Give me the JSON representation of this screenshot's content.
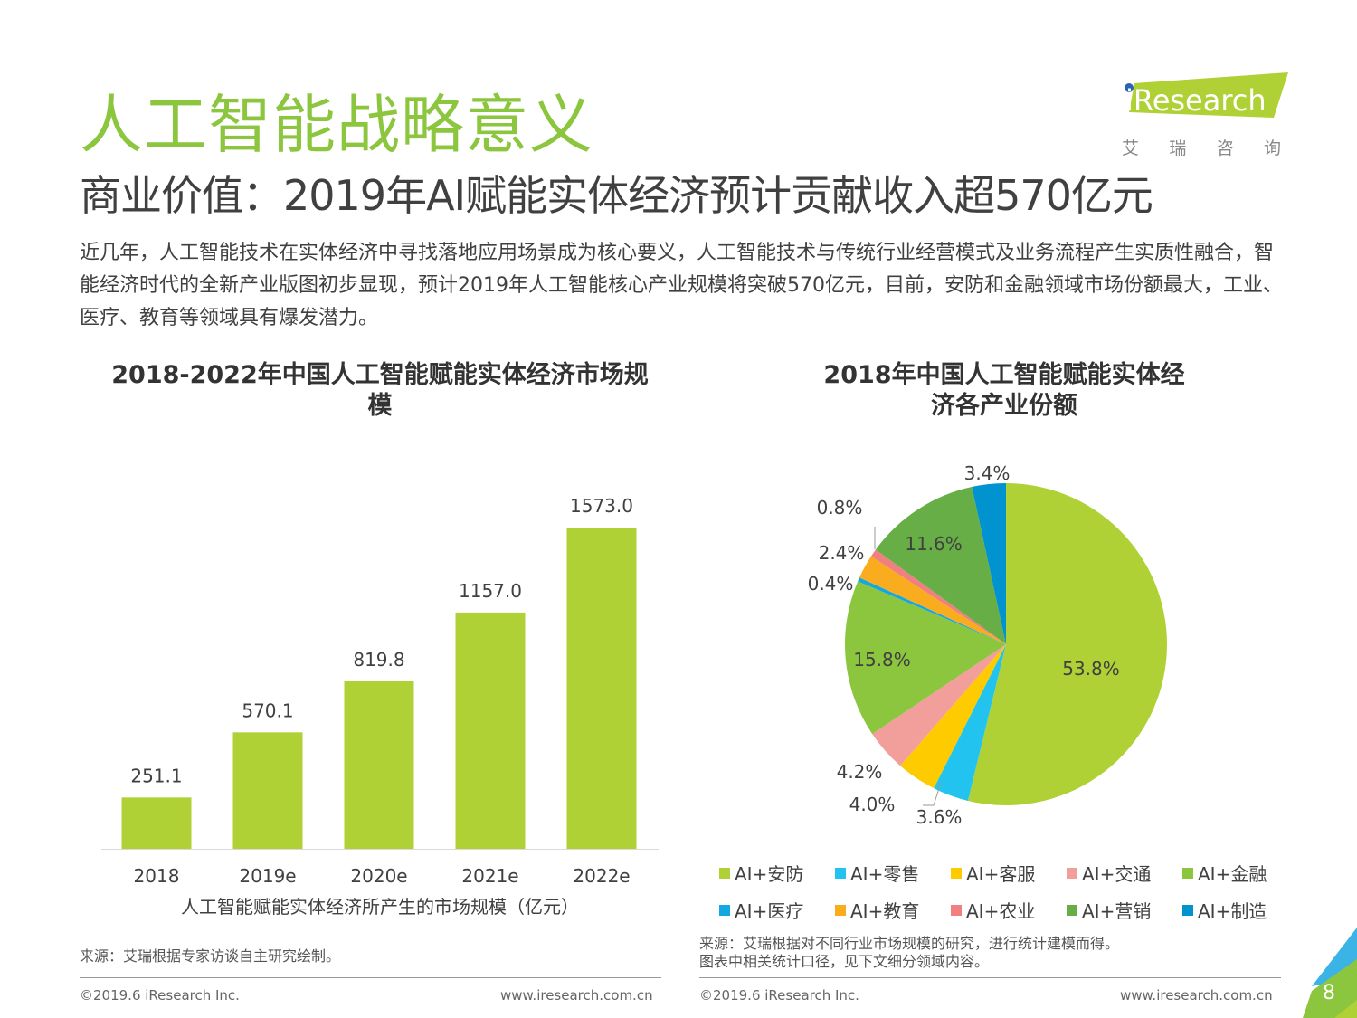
{
  "page": {
    "title": "人工智能战略意义",
    "subtitle": "商业价值：2019年AI赋能实体经济预计贡献收入超570亿元",
    "intro": "近几年，人工智能技术在实体经济中寻找落地应用场景成为核心要义，人工智能技术与传统行业经营模式及业务流程产生实质性融合，智能经济时代的全新产业版图初步显现，预计2019年人工智能核心产业规模将突破570亿元，目前，安防和金融领域市场份额最大，工业、医疗、教育等领域具有爆发潜力。",
    "page_number": "8",
    "accent_color": "#8cc63f"
  },
  "logo": {
    "text": "iResearch",
    "cn": [
      "艾",
      "瑞",
      "咨",
      "询"
    ]
  },
  "chart_data": [
    {
      "type": "bar",
      "title": "2018-2022年中国人工智能赋能实体经济市场规模",
      "categories": [
        "2018",
        "2019e",
        "2020e",
        "2021e",
        "2022e"
      ],
      "values": [
        251.1,
        570.1,
        819.8,
        1157.0,
        1573.0
      ],
      "value_labels": [
        "251.1",
        "570.1",
        "819.8",
        "1157.0",
        "1573.0"
      ],
      "xlabel": "人工智能赋能实体经济所产生的市场规模（亿元）",
      "ylabel": "",
      "color": "#b0d136",
      "grid": false,
      "source": "来源：艾瑞根据专家访谈自主研究绘制。"
    },
    {
      "type": "pie",
      "title": "2018年中国人工智能赋能实体经济各产业份额",
      "slices": [
        {
          "name": "AI+安防",
          "value": 53.8,
          "label": "53.8%",
          "color": "#b0d136"
        },
        {
          "name": "AI+零售",
          "value": 3.6,
          "label": "3.6%",
          "color": "#22c3ee"
        },
        {
          "name": "AI+客服",
          "value": 4.0,
          "label": "4.0%",
          "color": "#fdcb00"
        },
        {
          "name": "AI+交通",
          "value": 4.2,
          "label": "4.2%",
          "color": "#f29e9a"
        },
        {
          "name": "AI+金融",
          "value": 15.8,
          "label": "15.8%",
          "color": "#8cc63f"
        },
        {
          "name": "AI+医疗",
          "value": 0.4,
          "label": "0.4%",
          "color": "#13a8e0"
        },
        {
          "name": "AI+教育",
          "value": 2.4,
          "label": "2.4%",
          "color": "#f9ac1d"
        },
        {
          "name": "AI+农业",
          "value": 0.8,
          "label": "0.8%",
          "color": "#f08080"
        },
        {
          "name": "AI+营销",
          "value": 11.6,
          "label": "11.6%",
          "color": "#66ae45"
        },
        {
          "name": "AI+制造",
          "value": 3.4,
          "label": "3.4%",
          "color": "#0093d0"
        }
      ],
      "legend_position": "bottom",
      "source": [
        "来源：艾瑞根据对不同行业市场规模的研究，进行统计建模而得。",
        "图表中相关统计口径，见下文细分领域内容。"
      ]
    }
  ],
  "footer": {
    "copyright": "©2019.6 iResearch Inc.",
    "url": "www.iresearch.com.cn"
  }
}
